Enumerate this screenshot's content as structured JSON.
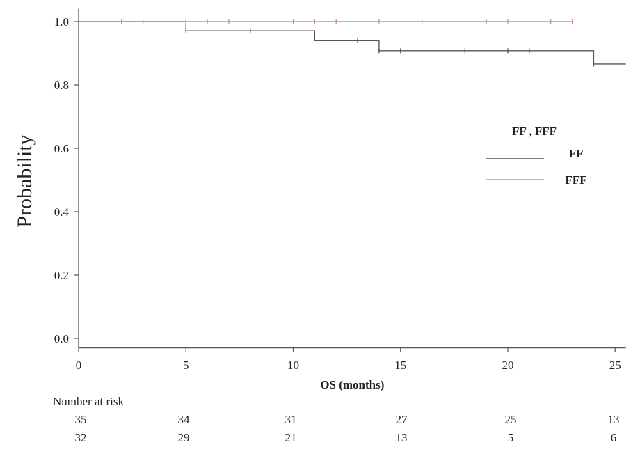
{
  "chart_data": {
    "type": "line",
    "subtype": "kaplan-meier step",
    "ylabel": "Probability",
    "xlabel": "OS (months)",
    "xlim": [
      0,
      25.5
    ],
    "ylim": [
      -0.03,
      1.04
    ],
    "xticks": [
      0,
      5,
      10,
      15,
      20,
      25
    ],
    "yticks": [
      0.0,
      0.2,
      0.4,
      0.6,
      0.8,
      1.0
    ],
    "x_tick_labels": [
      "0",
      "5",
      "10",
      "15",
      "20",
      "25"
    ],
    "y_tick_labels": [
      "0.0",
      "0.2",
      "0.4",
      "0.6",
      "0.8",
      "1.0"
    ],
    "grid": false,
    "legend": {
      "title": "FF , FFF",
      "placement": "right",
      "entries": [
        "FF",
        "FFF"
      ]
    },
    "series": [
      {
        "name": "FF",
        "color": "#555555",
        "steps": [
          {
            "x": 0,
            "y": 1.0
          },
          {
            "x": 5,
            "y": 0.971
          },
          {
            "x": 11,
            "y": 0.94
          },
          {
            "x": 14,
            "y": 0.908
          },
          {
            "x": 24,
            "y": 0.866
          },
          {
            "x": 25.5,
            "y": 0.866
          }
        ],
        "censored": [
          {
            "x": 5,
            "y": 0.971
          },
          {
            "x": 8,
            "y": 0.971
          },
          {
            "x": 13,
            "y": 0.94
          },
          {
            "x": 14,
            "y": 0.908
          },
          {
            "x": 15,
            "y": 0.908
          },
          {
            "x": 18,
            "y": 0.908
          },
          {
            "x": 20,
            "y": 0.908
          },
          {
            "x": 21,
            "y": 0.908
          },
          {
            "x": 24,
            "y": 0.866
          }
        ]
      },
      {
        "name": "FFF",
        "color": "#d98a8a",
        "steps": [
          {
            "x": 0,
            "y": 1.0
          },
          {
            "x": 23,
            "y": 1.0
          }
        ],
        "censored": [
          {
            "x": 2,
            "y": 1.0
          },
          {
            "x": 3,
            "y": 1.0
          },
          {
            "x": 5,
            "y": 1.0
          },
          {
            "x": 6,
            "y": 1.0
          },
          {
            "x": 7,
            "y": 1.0
          },
          {
            "x": 10,
            "y": 1.0
          },
          {
            "x": 11,
            "y": 1.0
          },
          {
            "x": 12,
            "y": 1.0
          },
          {
            "x": 14,
            "y": 1.0
          },
          {
            "x": 16,
            "y": 1.0
          },
          {
            "x": 19,
            "y": 1.0
          },
          {
            "x": 20,
            "y": 1.0
          },
          {
            "x": 22,
            "y": 1.0
          },
          {
            "x": 23,
            "y": 1.0
          }
        ]
      }
    ],
    "risk_table": {
      "title": "Number at risk",
      "rows": [
        [
          "35",
          "34",
          "31",
          "27",
          "25",
          "13"
        ],
        [
          "32",
          "29",
          "21",
          "13",
          "5",
          "6"
        ]
      ]
    }
  }
}
